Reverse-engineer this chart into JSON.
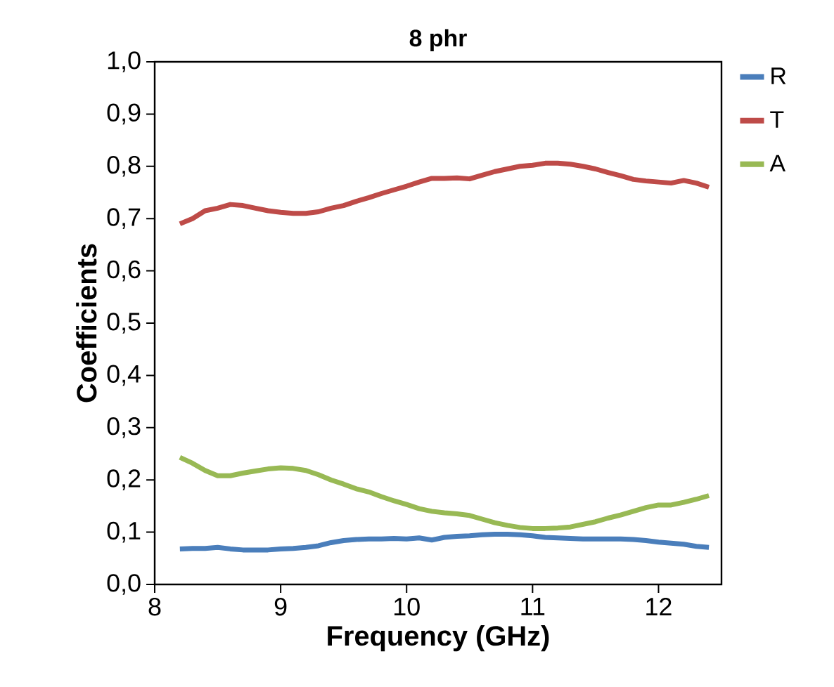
{
  "chart_data": {
    "type": "line",
    "title": "8 phr",
    "xlabel": "Frequency (GHz)",
    "ylabel": "Coefficients",
    "xlim": [
      8,
      12.5
    ],
    "xticks": [
      8,
      9,
      10,
      11,
      12
    ],
    "ylim": [
      0,
      1
    ],
    "yticks": [
      {
        "value": 0,
        "label": "0,0"
      },
      {
        "value": 0.1,
        "label": "0,1"
      },
      {
        "value": 0.2,
        "label": "0,2"
      },
      {
        "value": 0.3,
        "label": "0,3"
      },
      {
        "value": 0.4,
        "label": "0,4"
      },
      {
        "value": 0.5,
        "label": "0,5"
      },
      {
        "value": 0.6,
        "label": "0,6"
      },
      {
        "value": 0.7,
        "label": "0,7"
      },
      {
        "value": 0.8,
        "label": "0,8"
      },
      {
        "value": 0.9,
        "label": "0,9"
      },
      {
        "value": 1,
        "label": "1,0"
      }
    ],
    "x": [
      8.2,
      8.3,
      8.4,
      8.5,
      8.6,
      8.7,
      8.8,
      8.9,
      9.0,
      9.1,
      9.2,
      9.3,
      9.4,
      9.5,
      9.6,
      9.7,
      9.8,
      9.9,
      10.0,
      10.1,
      10.2,
      10.3,
      10.4,
      10.5,
      10.6,
      10.7,
      10.8,
      10.9,
      11.0,
      11.1,
      11.2,
      11.3,
      11.4,
      11.5,
      11.6,
      11.7,
      11.8,
      11.9,
      12.0,
      12.1,
      12.2,
      12.3,
      12.4
    ],
    "grid": false,
    "legend": "right",
    "line_style": "solid",
    "series": [
      {
        "name": "R",
        "color": "#4a7ebb",
        "values": [
          0.068,
          0.069,
          0.069,
          0.071,
          0.068,
          0.066,
          0.066,
          0.066,
          0.068,
          0.069,
          0.071,
          0.074,
          0.08,
          0.084,
          0.086,
          0.087,
          0.087,
          0.088,
          0.087,
          0.089,
          0.085,
          0.09,
          0.092,
          0.093,
          0.095,
          0.096,
          0.096,
          0.095,
          0.093,
          0.09,
          0.089,
          0.088,
          0.087,
          0.087,
          0.087,
          0.087,
          0.086,
          0.084,
          0.081,
          0.079,
          0.077,
          0.073,
          0.071
        ]
      },
      {
        "name": "T",
        "color": "#be4b48",
        "values": [
          0.69,
          0.7,
          0.715,
          0.72,
          0.727,
          0.725,
          0.72,
          0.715,
          0.712,
          0.71,
          0.71,
          0.713,
          0.72,
          0.725,
          0.733,
          0.74,
          0.748,
          0.755,
          0.762,
          0.77,
          0.777,
          0.777,
          0.778,
          0.776,
          0.783,
          0.79,
          0.795,
          0.8,
          0.802,
          0.806,
          0.806,
          0.804,
          0.8,
          0.795,
          0.788,
          0.782,
          0.775,
          0.772,
          0.77,
          0.768,
          0.773,
          0.768,
          0.76
        ]
      },
      {
        "name": "A",
        "color": "#98b954",
        "values": [
          0.243,
          0.232,
          0.218,
          0.208,
          0.208,
          0.213,
          0.217,
          0.221,
          0.223,
          0.222,
          0.218,
          0.21,
          0.2,
          0.192,
          0.183,
          0.177,
          0.168,
          0.16,
          0.153,
          0.145,
          0.14,
          0.137,
          0.135,
          0.132,
          0.125,
          0.118,
          0.113,
          0.109,
          0.107,
          0.107,
          0.108,
          0.11,
          0.115,
          0.12,
          0.127,
          0.133,
          0.14,
          0.147,
          0.152,
          0.152,
          0.157,
          0.163,
          0.17
        ]
      }
    ]
  }
}
